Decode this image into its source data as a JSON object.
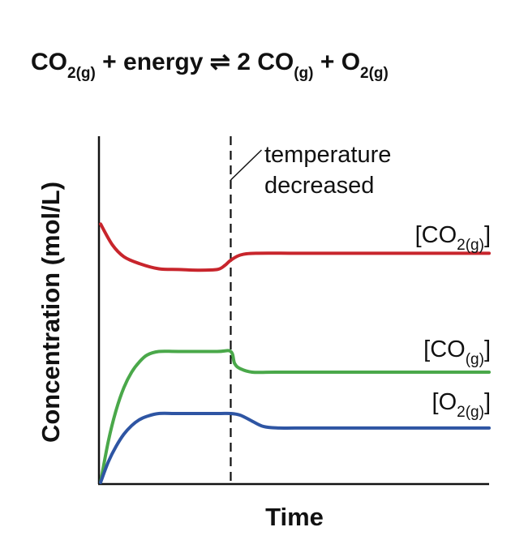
{
  "equation": {
    "left_species": "CO",
    "left_sub": "2(g)",
    "plus_energy": " + energy ",
    "arrow": "⇌",
    "right_prefix": " 2 CO",
    "right_sub1": "(g)",
    "plus": " + O",
    "right_sub2": "2(g)"
  },
  "chart_data": {
    "type": "line",
    "xlabel": "Time",
    "ylabel": "Concentration (mol/L)",
    "xlim": [
      0,
      10
    ],
    "ylim": [
      0,
      10
    ],
    "grid": false,
    "annotation": {
      "lines": [
        "temperature",
        "decreased"
      ],
      "x": 3.35
    },
    "series": [
      {
        "name": "[CO2(g)]",
        "label_main": "[CO",
        "label_sub": "2(g)",
        "label_end": "]",
        "color": "#c8252c",
        "x": [
          0,
          0.3,
          0.6,
          1.0,
          1.5,
          2.0,
          2.5,
          3.0,
          3.2,
          3.35,
          3.6,
          4.0,
          5.0,
          6.0,
          8.0,
          10.0
        ],
        "y": [
          7.5,
          6.9,
          6.55,
          6.35,
          6.2,
          6.18,
          6.16,
          6.18,
          6.3,
          6.45,
          6.6,
          6.65,
          6.65,
          6.65,
          6.65,
          6.65
        ]
      },
      {
        "name": "[CO(g)]",
        "label_main": "[CO",
        "label_sub": "(g)",
        "label_end": "]",
        "color": "#4aa84a",
        "x": [
          0,
          0.2,
          0.4,
          0.6,
          0.8,
          1.0,
          1.2,
          1.5,
          2.0,
          3.0,
          3.35,
          3.45,
          3.6,
          3.9,
          4.5,
          6.0,
          8.0,
          10.0
        ],
        "y": [
          0,
          1.2,
          2.1,
          2.75,
          3.2,
          3.5,
          3.7,
          3.8,
          3.8,
          3.8,
          3.8,
          3.45,
          3.3,
          3.2,
          3.2,
          3.2,
          3.2,
          3.2
        ]
      },
      {
        "name": "[O2(g)]",
        "label_main": "[O",
        "label_sub": "2(g)",
        "label_end": "]",
        "color": "#2e55a3",
        "x": [
          0,
          0.2,
          0.4,
          0.6,
          0.8,
          1.0,
          1.2,
          1.5,
          2.0,
          3.0,
          3.35,
          3.6,
          3.9,
          4.2,
          4.6,
          5.0,
          6.0,
          8.0,
          10.0
        ],
        "y": [
          0,
          0.6,
          1.05,
          1.4,
          1.65,
          1.82,
          1.92,
          2.0,
          2.0,
          2.0,
          2.0,
          1.95,
          1.78,
          1.62,
          1.58,
          1.58,
          1.58,
          1.58,
          1.58
        ]
      }
    ]
  }
}
